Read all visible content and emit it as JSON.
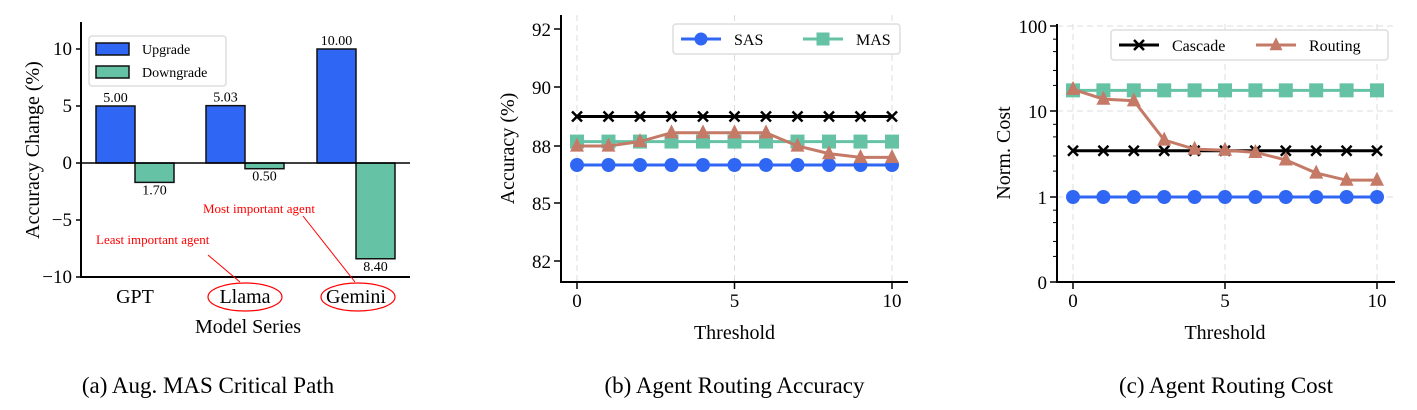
{
  "chart_data": [
    {
      "type": "bar",
      "title": "(a) Aug. MAS Critical Path",
      "xlabel": "Model Series",
      "ylabel": "Accuracy Change (%)",
      "categories": [
        "GPT",
        "Llama",
        "Gemini"
      ],
      "ylim": [
        -10,
        12
      ],
      "yticks": [
        10,
        5,
        0,
        -5,
        -10
      ],
      "ytick_labels": [
        "10",
        "5",
        "0",
        "−5",
        "−10"
      ],
      "series": [
        {
          "name": "Upgrade",
          "color": "#2f66f3",
          "values": [
            5.0,
            5.03,
            10.0
          ],
          "labels": [
            "5.00",
            "5.03",
            "10.00"
          ]
        },
        {
          "name": "Downgrade",
          "color": "#66c2a5",
          "values": [
            -1.7,
            -0.5,
            -8.4
          ],
          "labels": [
            "1.70",
            "0.50",
            "8.40"
          ]
        }
      ],
      "legend": "top-left",
      "annotations": [
        {
          "text": "Least important agent",
          "target": "Llama",
          "color": "#ff0000"
        },
        {
          "text": "Most important agent",
          "target": "Gemini",
          "color": "#ff0000"
        }
      ]
    },
    {
      "type": "line",
      "title": "(b) Agent Routing Accuracy",
      "xlabel": "Threshold",
      "ylabel": "Accuracy (%)",
      "x": [
        0,
        1,
        2,
        3,
        4,
        5,
        6,
        7,
        8,
        9,
        10
      ],
      "xticks": [
        0,
        5,
        10
      ],
      "yticks": [
        82,
        85,
        88,
        90,
        92
      ],
      "grid": "x-dashed",
      "legend": "top-right",
      "series": [
        {
          "name": "SAS",
          "color": "#2f66f3",
          "marker": "circle",
          "values": [
            87.0,
            87.0,
            87.0,
            87.0,
            87.0,
            87.0,
            87.0,
            87.0,
            87.0,
            87.0,
            87.0
          ],
          "in_legend": true
        },
        {
          "name": "MAS",
          "color": "#66c2a5",
          "marker": "square",
          "values": [
            88.15,
            88.15,
            88.15,
            88.15,
            88.15,
            88.15,
            88.15,
            88.15,
            88.15,
            88.15,
            88.15
          ],
          "in_legend": true
        },
        {
          "name": "Cascade",
          "color": "#000000",
          "marker": "x",
          "values": [
            89.0,
            89.0,
            89.0,
            89.0,
            89.0,
            89.0,
            89.0,
            89.0,
            89.0,
            89.0,
            89.0
          ],
          "in_legend": false
        },
        {
          "name": "Routing",
          "color": "#c47a67",
          "marker": "triangle",
          "values": [
            88.0,
            88.0,
            88.15,
            88.45,
            88.45,
            88.45,
            88.45,
            88.0,
            87.6,
            87.4,
            87.4
          ],
          "in_legend": false
        }
      ]
    },
    {
      "type": "line",
      "title": "(c) Agent Routing Cost",
      "xlabel": "Threshold",
      "ylabel": "Norm. Cost",
      "x": [
        0,
        1,
        2,
        3,
        4,
        5,
        6,
        7,
        8,
        9,
        10
      ],
      "xticks": [
        0,
        5,
        10
      ],
      "yscale": "log",
      "yticks": [
        0,
        1,
        10,
        100
      ],
      "grid": "both-dashed",
      "legend": "top-right",
      "series": [
        {
          "name": "SAS",
          "color": "#2f66f3",
          "marker": "circle",
          "values": [
            1,
            1,
            1,
            1,
            1,
            1,
            1,
            1,
            1,
            1,
            1
          ],
          "in_legend": false
        },
        {
          "name": "MAS",
          "color": "#66c2a5",
          "marker": "square",
          "values": [
            17.5,
            17.5,
            17.5,
            17.5,
            17.5,
            17.5,
            17.5,
            17.5,
            17.5,
            17.5,
            17.5
          ],
          "in_legend": false
        },
        {
          "name": "Cascade",
          "color": "#000000",
          "marker": "x",
          "values": [
            3.45,
            3.45,
            3.45,
            3.45,
            3.45,
            3.45,
            3.45,
            3.45,
            3.45,
            3.45,
            3.45
          ],
          "in_legend": true
        },
        {
          "name": "Routing",
          "color": "#c47a67",
          "marker": "triangle",
          "values": [
            18,
            13.8,
            13.2,
            4.6,
            3.6,
            3.5,
            3.3,
            2.7,
            1.9,
            1.57,
            1.57
          ],
          "in_legend": true
        }
      ]
    }
  ]
}
